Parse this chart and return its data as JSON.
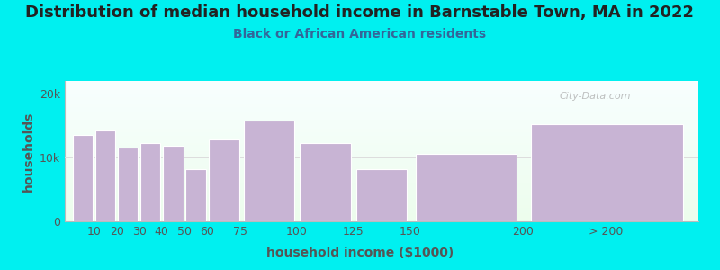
{
  "title": "Distribution of median household income in Barnstable Town, MA in 2022",
  "subtitle": "Black or African American residents",
  "xlabel": "household income ($1000)",
  "ylabel": "households",
  "bar_labels": [
    "10",
    "20",
    "30",
    "40",
    "50",
    "60",
    "75",
    "100",
    "125",
    "150",
    "200",
    "> 200"
  ],
  "bar_values": [
    13500,
    14200,
    11500,
    12200,
    11800,
    8200,
    12800,
    15800,
    12200,
    8200,
    10600,
    15200
  ],
  "bar_color": "#c8b4d4",
  "background_color": "#00f0f0",
  "plot_bg_colors": [
    "#edfded",
    "#f8ffff"
  ],
  "ytick_labels": [
    "0",
    "10k",
    "20k"
  ],
  "ytick_values": [
    0,
    10000,
    20000
  ],
  "ylim": [
    0,
    22000
  ],
  "xlim": [
    -3,
    278
  ],
  "bar_lefts": [
    0,
    10,
    20,
    30,
    40,
    50,
    60,
    75,
    100,
    125,
    150,
    200
  ],
  "bar_widths": [
    10,
    10,
    10,
    10,
    10,
    10,
    15,
    25,
    25,
    25,
    50,
    75
  ],
  "tick_positions": [
    10,
    20,
    30,
    40,
    50,
    60,
    75,
    100,
    125,
    150,
    200,
    237
  ],
  "title_fontsize": 13,
  "subtitle_fontsize": 10,
  "axis_label_fontsize": 10,
  "tick_fontsize": 9,
  "title_color": "#222222",
  "subtitle_color": "#336699",
  "axis_label_color": "#555555",
  "tick_color": "#555555",
  "watermark": "City-Data.com"
}
